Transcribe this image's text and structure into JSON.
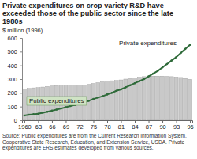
{
  "chart_data": {
    "type": "bar",
    "title": "Private expenditures on crop variety R&D have exceeded those of the public sector since the late 1980s",
    "y_label": "$ million (1996)",
    "source": "Source: Public expenditures are from the Current Research Information System, Cooperative State Research, Education, and Extension Service, USDA. Private expenditures are ERS estimates developed from various sources.",
    "x": [
      1960,
      1961,
      1962,
      1963,
      1964,
      1965,
      1966,
      1967,
      1968,
      1969,
      1970,
      1971,
      1972,
      1973,
      1974,
      1975,
      1976,
      1977,
      1978,
      1979,
      1980,
      1981,
      1982,
      1983,
      1984,
      1985,
      1986,
      1987,
      1988,
      1989,
      1990,
      1991,
      1992,
      1993,
      1994,
      1995,
      1996
    ],
    "series": [
      {
        "name": "Public expenditures",
        "type": "bar",
        "color": "#c9c9c9",
        "values": [
          228,
          232,
          236,
          238,
          242,
          246,
          250,
          252,
          256,
          258,
          258,
          256,
          255,
          258,
          262,
          268,
          274,
          280,
          284,
          288,
          290,
          294,
          300,
          306,
          310,
          314,
          318,
          320,
          322,
          322,
          322,
          320,
          318,
          315,
          312,
          305,
          298
        ]
      },
      {
        "name": "Private expenditures",
        "type": "line",
        "color": "#2f6b3a",
        "marker": "circle",
        "values": [
          35,
          40,
          44,
          48,
          55,
          62,
          70,
          78,
          86,
          95,
          104,
          112,
          120,
          130,
          142,
          155,
          165,
          175,
          188,
          200,
          215,
          225,
          240,
          255,
          270,
          285,
          300,
          320,
          340,
          360,
          385,
          410,
          435,
          460,
          490,
          520,
          550
        ]
      }
    ],
    "xlim": [
      1959.5,
      1996.5
    ],
    "xticks": [
      1960,
      {
        "value": 1963,
        "label": "63"
      },
      {
        "value": 1966,
        "label": "66"
      },
      {
        "value": 1969,
        "label": "69"
      },
      {
        "value": 1972,
        "label": "72"
      },
      {
        "value": 1975,
        "label": "75"
      },
      {
        "value": 1978,
        "label": "78"
      },
      {
        "value": 1981,
        "label": "81"
      },
      {
        "value": 1984,
        "label": "84"
      },
      {
        "value": 1987,
        "label": "87"
      },
      {
        "value": 1990,
        "label": "90"
      },
      {
        "value": 1993,
        "label": "93"
      },
      {
        "value": 1996,
        "label": "96"
      }
    ],
    "ylim": [
      0,
      600
    ],
    "yticks": [
      0,
      100,
      200,
      300,
      400,
      500,
      600
    ],
    "grid": false
  }
}
